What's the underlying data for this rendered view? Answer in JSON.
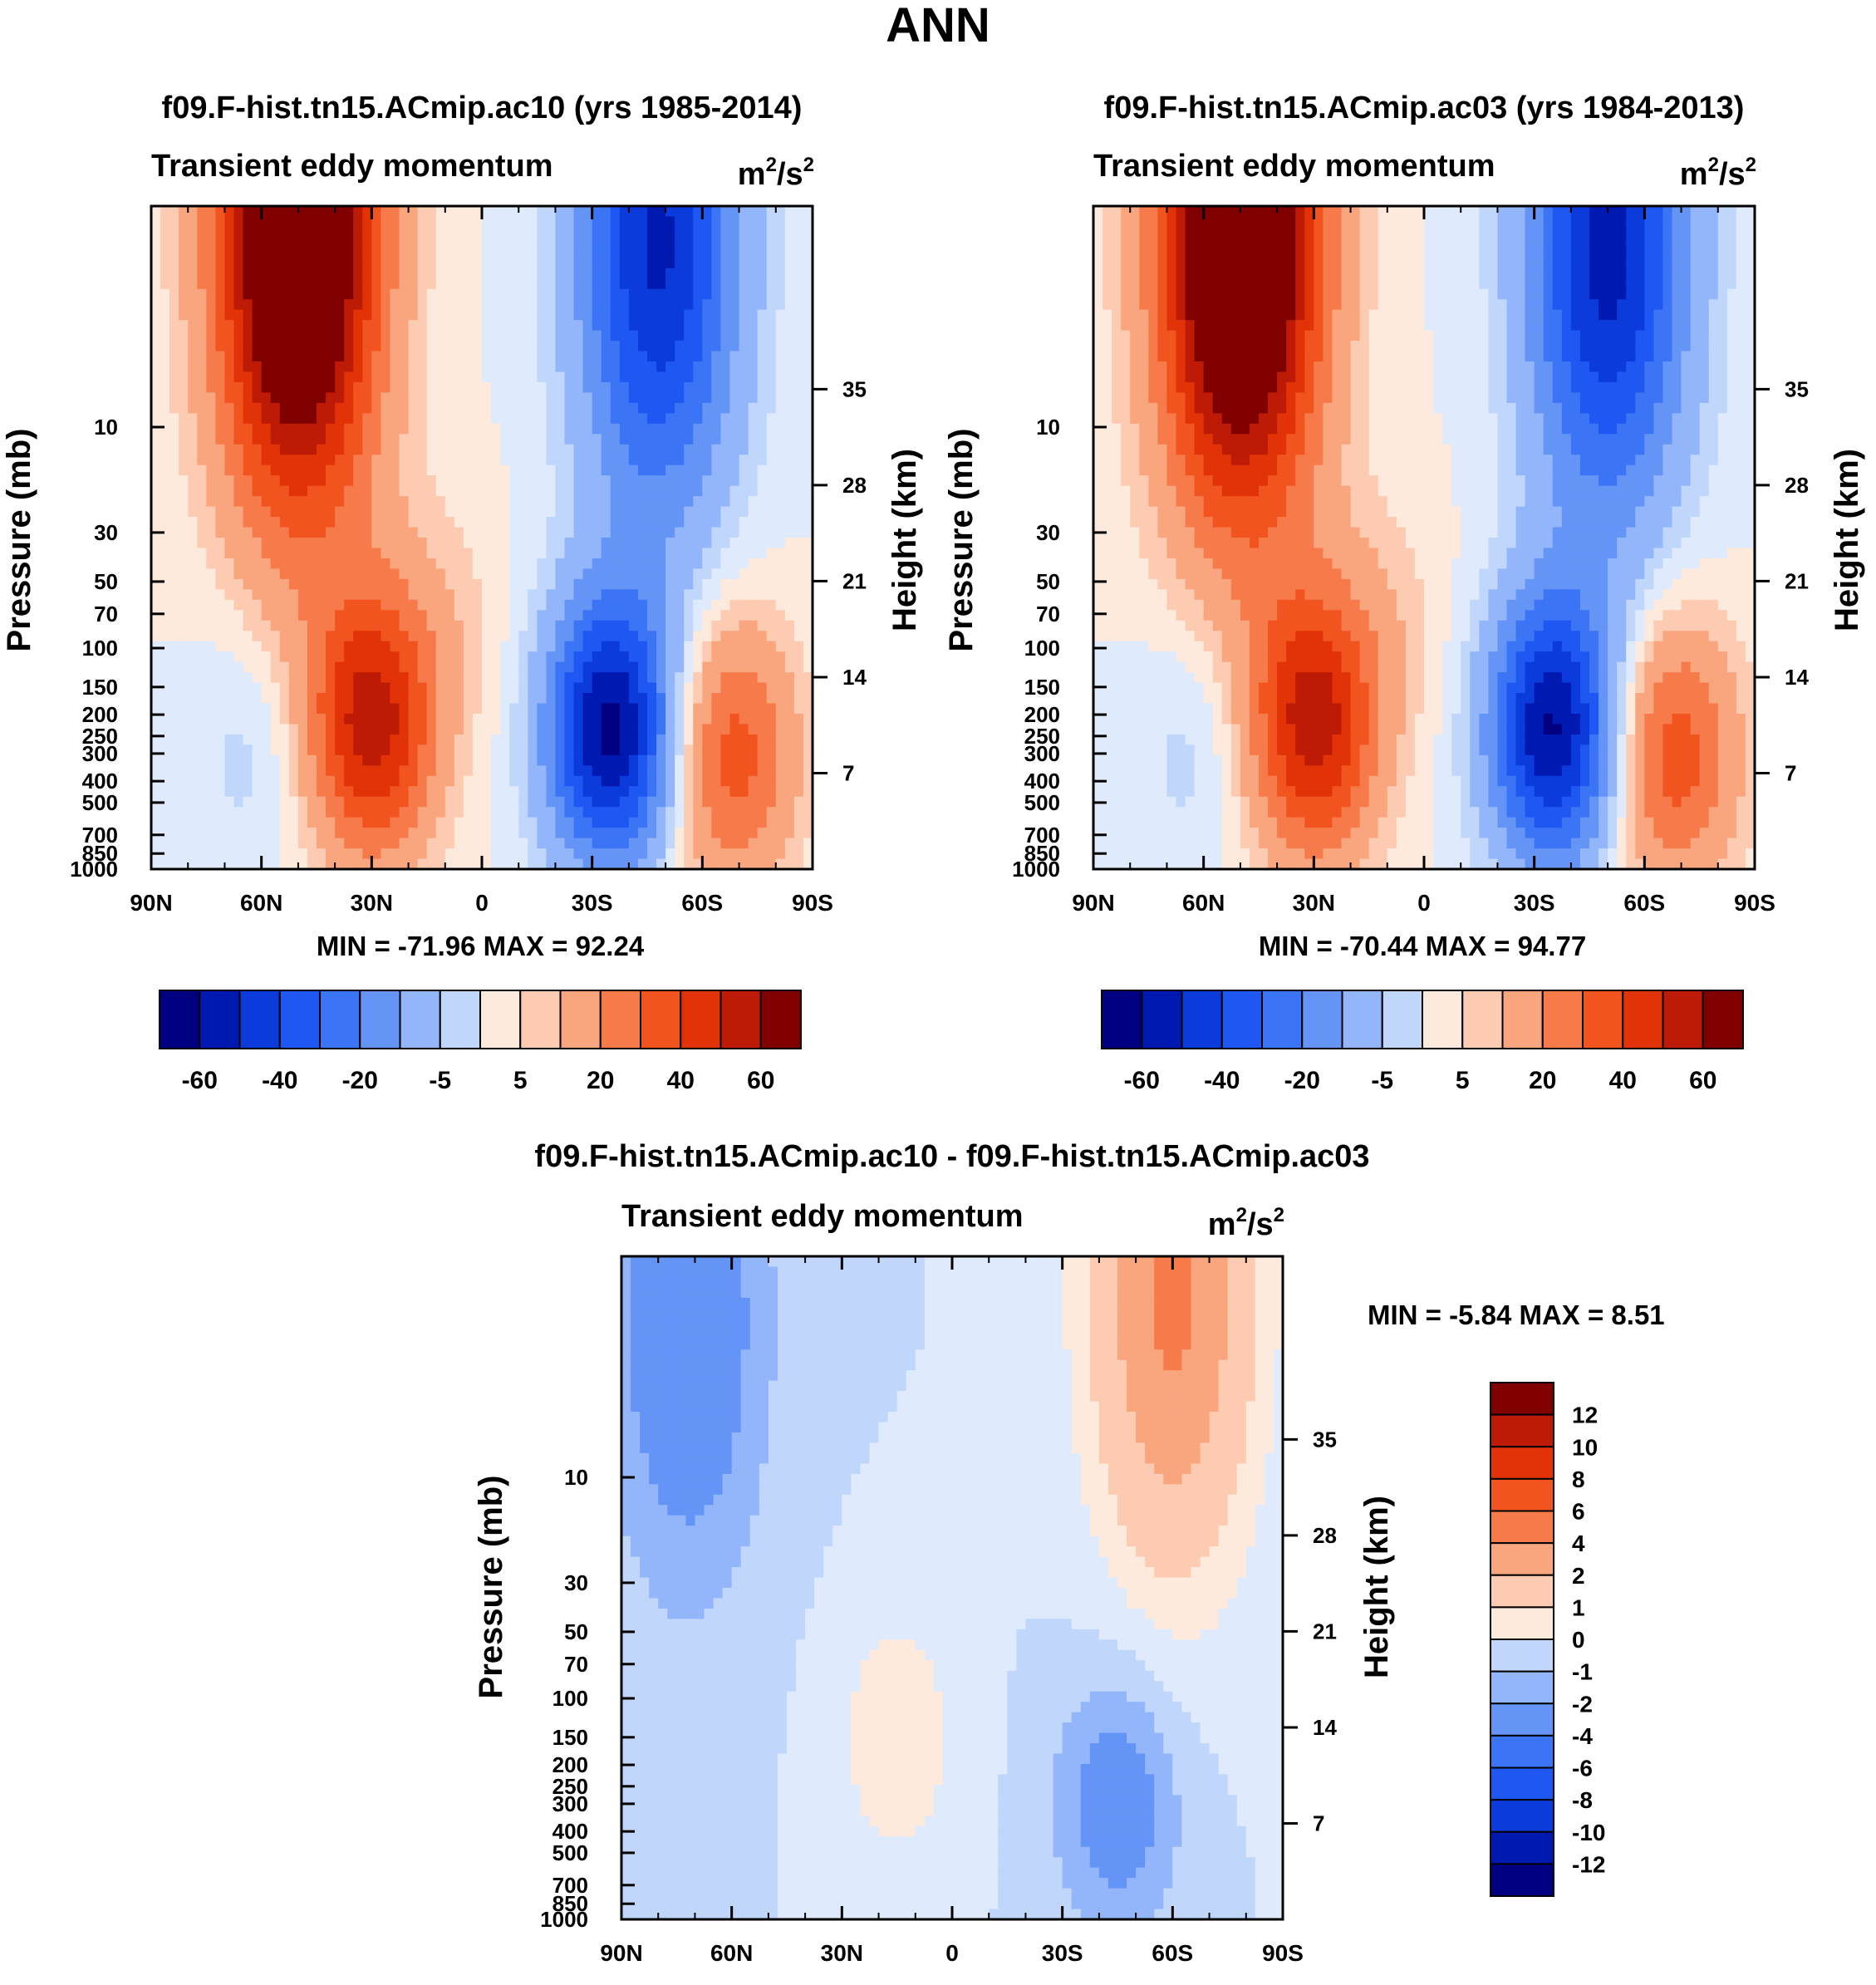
{
  "figure_title": "ANN",
  "colors": {
    "seq16": [
      "#000080",
      "#0019b0",
      "#0b3bdb",
      "#1f57f2",
      "#3b75f5",
      "#6594f7",
      "#93b5f9",
      "#c0d7fb",
      "#dfeafc",
      "#feeadc",
      "#fccbb1",
      "#f9a57e",
      "#f77a4b",
      "#f2541f",
      "#e23308",
      "#bd1b05",
      "#800000"
    ],
    "diff": [
      "#000080",
      "#0019b0",
      "#0b3bdb",
      "#1f57f2",
      "#3b75f5",
      "#6594f7",
      "#93b5f9",
      "#c0d7fb",
      "#dfeafc",
      "#feeadc",
      "#fccbb1",
      "#f9a57e",
      "#f77a4b",
      "#f2541f",
      "#e23308",
      "#bd1b05",
      "#800000"
    ]
  },
  "chart_data": [
    {
      "type": "contour",
      "title": "f09.F-hist.tn15.ACmip.ac10 (yrs 1985-2014)",
      "subtitle": "Transient eddy momentum",
      "units_main": "m",
      "units_sup1": "2",
      "units_mid": "/s",
      "units_sup2": "2",
      "xlabel": "",
      "ylabel": "Pressure (mb)",
      "ylabel_right": "Height (km)",
      "x_ticks": [
        "90N",
        "60N",
        "30N",
        "0",
        "30S",
        "60S",
        "90S"
      ],
      "x_range": [
        90,
        -90
      ],
      "y_ticks": [
        10,
        30,
        50,
        70,
        100,
        150,
        200,
        250,
        300,
        400,
        500,
        700,
        850,
        1000
      ],
      "y_range": [
        1.0,
        1000
      ],
      "height_ticks": [
        7,
        14,
        21,
        28,
        35
      ],
      "min_label": "MIN = -71.96  MAX =  92.24",
      "min": -71.96,
      "max": 92.24,
      "levels": [
        -70,
        -60,
        -50,
        -40,
        -30,
        -20,
        -10,
        -5,
        0,
        5,
        10,
        20,
        30,
        40,
        50,
        60,
        70
      ],
      "colorbar_labels": [
        "-60",
        "-40",
        "-20",
        "-5",
        "5",
        "20",
        "40",
        "60"
      ],
      "features": [
        {
          "lat": 50,
          "p": 1.5,
          "amp": 95
        },
        {
          "lat": 30,
          "p": 220,
          "amp": 55
        },
        {
          "lat": -35,
          "p": 235,
          "amp": -72
        },
        {
          "lat": -48,
          "p": 1.5,
          "amp": -62
        },
        {
          "lat": -68,
          "p": 300,
          "amp": 35
        },
        {
          "lat": 62,
          "p": 270,
          "amp": -8
        },
        {
          "lat": 10,
          "p": 70,
          "amp": 6
        }
      ]
    },
    {
      "type": "contour",
      "title": "f09.F-hist.tn15.ACmip.ac03 (yrs 1984-2013)",
      "subtitle": "Transient eddy momentum",
      "units_main": "m",
      "units_sup1": "2",
      "units_mid": "/s",
      "units_sup2": "2",
      "xlabel": "",
      "ylabel": "Pressure (mb)",
      "ylabel_right": "Height (km)",
      "x_ticks": [
        "90N",
        "60N",
        "30N",
        "0",
        "30S",
        "60S",
        "90S"
      ],
      "x_range": [
        90,
        -90
      ],
      "y_ticks": [
        10,
        30,
        50,
        70,
        100,
        150,
        200,
        250,
        300,
        400,
        500,
        700,
        850,
        1000
      ],
      "y_range": [
        1.0,
        1000
      ],
      "height_ticks": [
        7,
        14,
        21,
        28,
        35
      ],
      "min_label": "MIN = -70.44  MAX =  94.77",
      "min": -70.44,
      "max": 94.77,
      "levels": [
        -70,
        -60,
        -50,
        -40,
        -30,
        -20,
        -10,
        -5,
        0,
        5,
        10,
        20,
        30,
        40,
        50,
        60,
        70
      ],
      "colorbar_labels": [
        "-60",
        "-40",
        "-20",
        "-5",
        "5",
        "20",
        "40",
        "60"
      ],
      "features": [
        {
          "lat": 50,
          "p": 1.5,
          "amp": 98
        },
        {
          "lat": 30,
          "p": 220,
          "amp": 55
        },
        {
          "lat": -35,
          "p": 235,
          "amp": -70
        },
        {
          "lat": -50,
          "p": 1.5,
          "amp": -65
        },
        {
          "lat": -68,
          "p": 300,
          "amp": 36
        },
        {
          "lat": 62,
          "p": 270,
          "amp": -8
        },
        {
          "lat": 10,
          "p": 70,
          "amp": 6
        }
      ]
    },
    {
      "type": "contour",
      "title": "f09.F-hist.tn15.ACmip.ac10 - f09.F-hist.tn15.ACmip.ac03",
      "subtitle": "Transient eddy momentum",
      "units_main": "m",
      "units_sup1": "2",
      "units_mid": "/s",
      "units_sup2": "2",
      "xlabel": "",
      "ylabel": "Pressure (mb)",
      "ylabel_right": "Height (km)",
      "x_ticks": [
        "90N",
        "60N",
        "30N",
        "0",
        "30S",
        "60S",
        "90S"
      ],
      "x_range": [
        90,
        -90
      ],
      "y_ticks": [
        10,
        30,
        50,
        70,
        100,
        150,
        200,
        250,
        300,
        400,
        500,
        700,
        850,
        1000
      ],
      "y_range": [
        1.0,
        1000
      ],
      "height_ticks": [
        7,
        14,
        21,
        28,
        35
      ],
      "min_label": "MIN =  -5.84  MAX =   8.51",
      "min": -5.84,
      "max": 8.51,
      "levels": [
        -12,
        -10,
        -8,
        -6,
        -4,
        -2,
        -1,
        0,
        1,
        2,
        4,
        6,
        8,
        10,
        12
      ],
      "colorbar_labels": [
        "12",
        "10",
        "8",
        "6",
        "4",
        "2",
        "1",
        "0",
        "-1",
        "-2",
        "-4",
        "-6",
        "-8",
        "-10",
        "-12"
      ],
      "features": [
        {
          "lat": 72,
          "p": 2.0,
          "amp": -3.5
        },
        {
          "lat": -60,
          "p": 1.5,
          "amp": 6.5
        },
        {
          "lat": -45,
          "p": 300,
          "amp": -3.0
        },
        {
          "lat": 15,
          "p": 150,
          "amp": 1.8
        }
      ]
    }
  ]
}
